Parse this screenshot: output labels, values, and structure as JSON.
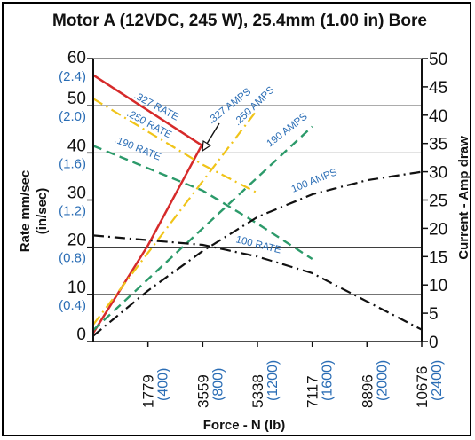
{
  "chart_data": {
    "type": "line",
    "title": "Motor A (12VDC, 245 W), 25.4mm (1.00 in) Bore",
    "xlabel": "Force - N (lb)",
    "ylabel_left": "Rate mm/sec",
    "ylabel_left_alt": "(in/sec)",
    "ylabel_right": "Current - Amp draw",
    "xlim": [
      0,
      10676
    ],
    "ylim_left": [
      0,
      60
    ],
    "ylim_right": [
      0,
      50
    ],
    "grid": "horizontal",
    "x_ticks": [
      {
        "value": 1779,
        "label": "1779",
        "alt": "(400)"
      },
      {
        "value": 3559,
        "label": "3559",
        "alt": "(800)"
      },
      {
        "value": 5338,
        "label": "5338",
        "alt": "(1200)"
      },
      {
        "value": 7117,
        "label": "7117",
        "alt": "(1600)"
      },
      {
        "value": 8896,
        "label": "8896",
        "alt": "(2000)"
      },
      {
        "value": 10676,
        "label": "10676",
        "alt": "(2400)"
      }
    ],
    "y_left_ticks": [
      {
        "value": 0,
        "label": "0",
        "alt": ""
      },
      {
        "value": 10,
        "label": "10",
        "alt": "(0.4)"
      },
      {
        "value": 20,
        "label": "20",
        "alt": "(0.8)"
      },
      {
        "value": 30,
        "label": "30",
        "alt": "(1.2)"
      },
      {
        "value": 40,
        "label": "40",
        "alt": "(1.6)"
      },
      {
        "value": 50,
        "label": "50",
        "alt": "(2.0)"
      },
      {
        "value": 60,
        "label": "60",
        "alt": "(2.4)"
      }
    ],
    "y_right_ticks": [
      {
        "value": 0,
        "label": "0"
      },
      {
        "value": 5,
        "label": "5"
      },
      {
        "value": 10,
        "label": "10"
      },
      {
        "value": 15,
        "label": "15"
      },
      {
        "value": 20,
        "label": "20"
      },
      {
        "value": 25,
        "label": "25"
      },
      {
        "value": 30,
        "label": "30"
      },
      {
        "value": 35,
        "label": "35"
      },
      {
        "value": 40,
        "label": "40"
      },
      {
        "value": 45,
        "label": "45"
      },
      {
        "value": 50,
        "label": "50"
      }
    ],
    "series": [
      {
        "name": ".327 RATE",
        "axis": "left",
        "color": "#d62a2a",
        "dash": "solid",
        "points": [
          [
            0,
            56.5
          ],
          [
            3559,
            41.5
          ]
        ]
      },
      {
        "name": ".327 AMPS",
        "axis": "right",
        "color": "#d62a2a",
        "dash": "solid",
        "points": [
          [
            0,
            1.5
          ],
          [
            1779,
            17.0
          ],
          [
            3559,
            35.0
          ]
        ]
      },
      {
        "name": ".250 RATE",
        "axis": "left",
        "color": "#f0c419",
        "dash": "dashdot",
        "points": [
          [
            0,
            51.5
          ],
          [
            3559,
            37.5
          ],
          [
            5338,
            31.5
          ]
        ]
      },
      {
        "name": ".250 AMPS",
        "axis": "right",
        "color": "#f0c419",
        "dash": "dashdot",
        "points": [
          [
            0,
            3.0
          ],
          [
            2669,
            22.0
          ],
          [
            5338,
            41.0
          ]
        ]
      },
      {
        "name": ".190 RATE",
        "axis": "left",
        "color": "#2c9a6a",
        "dash": "dashed",
        "points": [
          [
            0,
            41.5
          ],
          [
            3559,
            32.0
          ],
          [
            5338,
            25.0
          ],
          [
            7117,
            17.5
          ]
        ]
      },
      {
        "name": "190 AMPS",
        "axis": "right",
        "color": "#2c9a6a",
        "dash": "dashed",
        "points": [
          [
            0,
            2.0
          ],
          [
            3559,
            20.0
          ],
          [
            7117,
            38.0
          ]
        ]
      },
      {
        "name": "100 RATE",
        "axis": "left",
        "color": "#111111",
        "dash": "dashdot",
        "points": [
          [
            0,
            22.5
          ],
          [
            3559,
            20.5
          ],
          [
            5338,
            18.0
          ],
          [
            7117,
            14.5
          ],
          [
            8896,
            8.5
          ],
          [
            10676,
            2.5
          ]
        ]
      },
      {
        "name": "100 AMPS",
        "axis": "right",
        "color": "#111111",
        "dash": "dashdot",
        "points": [
          [
            0,
            1.0
          ],
          [
            1779,
            9.0
          ],
          [
            3559,
            16.0
          ],
          [
            5338,
            22.0
          ],
          [
            7117,
            26.0
          ],
          [
            8896,
            28.5
          ],
          [
            10676,
            30.0
          ]
        ]
      }
    ]
  }
}
